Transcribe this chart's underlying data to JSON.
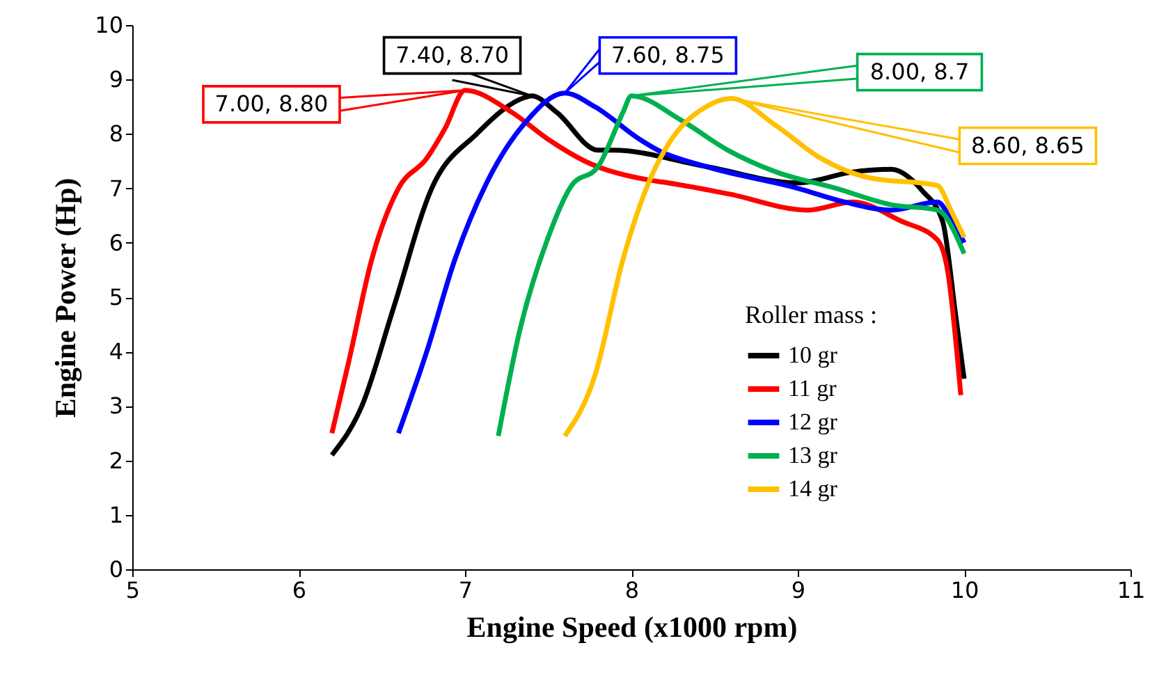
{
  "chart_data": {
    "type": "line",
    "xlabel": "Engine Speed (x1000 rpm)",
    "ylabel": "Engine Power (Hp)",
    "legend_title": "Roller mass :",
    "legend": "bottom right",
    "grid": false,
    "marker": "none",
    "line_style": "solid",
    "xlim": [
      5,
      11
    ],
    "xticks": [
      5,
      6,
      7,
      8,
      9,
      10,
      11
    ],
    "ylim": [
      0,
      10
    ],
    "yticks": [
      0,
      1,
      2,
      3,
      4,
      5,
      6,
      7,
      8,
      9,
      10
    ],
    "series": [
      {
        "name": "10 gr",
        "color": "#000000",
        "x": [
          6.2,
          6.38,
          6.57,
          6.8,
          7.07,
          7.36,
          7.4,
          7.55,
          7.8,
          7.89,
          8.45,
          9.0,
          9.33,
          9.56,
          9.75,
          9.87,
          9.95,
          10.0
        ],
        "values": [
          2.1,
          3.0,
          4.8,
          7.0,
          8.0,
          8.67,
          8.7,
          8.4,
          7.7,
          7.7,
          7.4,
          7.1,
          7.3,
          7.35,
          6.95,
          6.4,
          4.65,
          3.5
        ]
      },
      {
        "name": "11 gr",
        "color": "#ff0000",
        "x": [
          6.2,
          6.3,
          6.44,
          6.6,
          6.77,
          6.88,
          7.0,
          7.28,
          7.5,
          7.72,
          8.11,
          8.22,
          8.58,
          9.06,
          9.33,
          9.62,
          9.84,
          9.9,
          9.98
        ],
        "values": [
          2.5,
          3.8,
          5.7,
          7.0,
          7.55,
          8.1,
          8.8,
          8.4,
          7.9,
          7.5,
          7.15,
          7.1,
          6.9,
          6.6,
          6.75,
          6.4,
          6.05,
          5.5,
          3.2
        ]
      },
      {
        "name": "12 gr",
        "color": "#0000ff",
        "x": [
          6.6,
          6.77,
          6.94,
          7.13,
          7.36,
          7.6,
          7.78,
          8.05,
          8.16,
          8.45,
          9.0,
          9.28,
          9.56,
          9.84,
          9.9,
          10.0
        ],
        "values": [
          2.5,
          4.0,
          5.7,
          7.1,
          8.2,
          8.75,
          8.5,
          7.9,
          7.7,
          7.4,
          7.0,
          6.75,
          6.6,
          6.75,
          6.55,
          6.0
        ]
      },
      {
        "name": "13 gr",
        "color": "#00b050",
        "x": [
          7.2,
          7.33,
          7.5,
          7.64,
          7.8,
          7.95,
          8.0,
          8.3,
          8.58,
          8.87,
          9.23,
          9.56,
          9.84,
          10.0
        ],
        "values": [
          2.45,
          4.4,
          6.1,
          7.05,
          7.4,
          8.4,
          8.7,
          8.25,
          7.7,
          7.3,
          7.0,
          6.7,
          6.6,
          5.8
        ]
      },
      {
        "name": "14 gr",
        "color": "#ffc000",
        "x": [
          7.6,
          7.78,
          7.95,
          8.11,
          8.22,
          8.45,
          8.6,
          8.87,
          9.14,
          9.42,
          9.84,
          9.92,
          10.0
        ],
        "values": [
          2.45,
          3.55,
          5.7,
          7.15,
          7.8,
          8.5,
          8.65,
          8.15,
          7.55,
          7.2,
          7.05,
          6.6,
          6.1
        ]
      }
    ],
    "annotations": [
      {
        "text": "7.40, 8.70",
        "x": 7.4,
        "y": 8.7
      },
      {
        "text": "7.00, 8.80",
        "x": 7.0,
        "y": 8.8
      },
      {
        "text": "7.60, 8.75",
        "x": 7.6,
        "y": 8.75
      },
      {
        "text": "8.00, 8.7",
        "x": 8.0,
        "y": 8.7
      },
      {
        "text": "8.60, 8.65",
        "x": 8.6,
        "y": 8.65
      }
    ]
  }
}
